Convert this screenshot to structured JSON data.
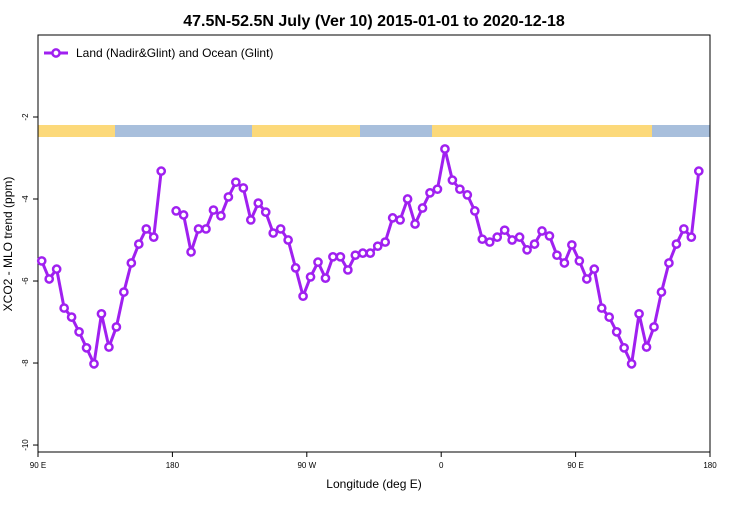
{
  "chart_data": {
    "type": "line",
    "title": "47.5N-52.5N July (Ver 10)   2015-01-01 to 2020-12-18",
    "xlabel": "Longitude (deg E)",
    "ylabel": "XCO2 - MLO trend (ppm)",
    "xlim": [
      90,
      540
    ],
    "xticks": [
      {
        "value": 90,
        "label": "90 E"
      },
      180,
      {
        "value": 270,
        "label": "90 W"
      },
      {
        "value": 360,
        "label": "0"
      },
      {
        "value": 450,
        "label": "90 E"
      },
      {
        "value": 540,
        "label": "180"
      }
    ],
    "ylim": [
      -10.17,
      0
    ],
    "yticks": [
      -2,
      -4,
      -6,
      -8,
      -10
    ],
    "legend": "top-left",
    "x": [
      92.5,
      97.5,
      102.5,
      107.5,
      112.5,
      117.5,
      122.5,
      127.5,
      132.5,
      137.5,
      142.5,
      147.5,
      152.5,
      157.5,
      162.5,
      167.5,
      172.5,
      177.5,
      182.5,
      187.5,
      192.5,
      197.5,
      202.5,
      207.5,
      212.5,
      217.5,
      222.5,
      227.5,
      232.5,
      237.5,
      242.5,
      247.5,
      252.5,
      257.5,
      262.5,
      267.5,
      272.5,
      277.5,
      282.5,
      287.5,
      292.5,
      297.5,
      302.5,
      307.5,
      312.5,
      317.5,
      322.5,
      327.5,
      332.5,
      337.5,
      342.5,
      347.5,
      352.5,
      357.5,
      362.5,
      367.5,
      372.5,
      377.5,
      382.5,
      387.5,
      392.5,
      397.5,
      402.5,
      407.5,
      412.5,
      417.5,
      422.5,
      427.5,
      432.5,
      437.5,
      442.5,
      447.5,
      452.5,
      457.5,
      462.5,
      467.5,
      472.5,
      477.5,
      482.5,
      487.5,
      492.5,
      497.5,
      502.5,
      507.5,
      512.5,
      517.5,
      522.5,
      527.5,
      532.5
    ],
    "series": [
      {
        "name": "Land (Nadir&Glint) and Ocean (Glint)",
        "color": "#a020f0",
        "values": [
          -5.51,
          -5.95,
          -5.71,
          -6.66,
          -6.88,
          -7.24,
          -7.63,
          -8.02,
          -6.8,
          -7.61,
          -7.12,
          -6.27,
          -5.56,
          -5.1,
          -4.73,
          -4.93,
          -3.32,
          null,
          -4.29,
          -4.39,
          -5.29,
          -4.73,
          -4.73,
          -4.27,
          -4.41,
          -3.95,
          -3.59,
          -3.73,
          -4.51,
          -4.1,
          -4.32,
          -4.83,
          -4.73,
          -5.0,
          -5.68,
          -6.37,
          -5.9,
          -5.54,
          -5.93,
          -5.41,
          -5.41,
          -5.73,
          -5.37,
          -5.32,
          -5.32,
          -5.15,
          -5.05,
          -4.46,
          -4.51,
          -4.0,
          -4.61,
          -4.22,
          -3.85,
          -3.76,
          -2.78,
          -3.54,
          -3.76,
          -3.9,
          -4.29,
          -4.98,
          -5.05,
          -4.93,
          -4.76,
          -5.0,
          -4.93,
          -5.24,
          -5.1,
          -4.78,
          -4.9,
          -5.37,
          -5.56,
          -5.12,
          -5.51,
          -5.95,
          -5.71,
          -6.66,
          -6.88,
          -7.24,
          -7.63,
          -8.02,
          -6.8,
          -7.61,
          -7.12,
          -6.27,
          -5.56,
          -5.1,
          -4.73,
          -4.93,
          -3.32
        ]
      }
    ]
  }
}
